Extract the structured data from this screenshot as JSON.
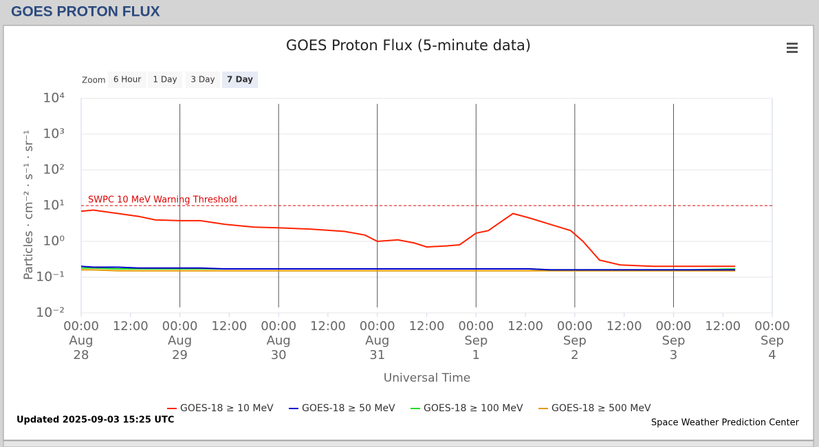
{
  "header": "GOES PROTON FLUX",
  "chart_data": {
    "type": "line",
    "title": "GOES Proton Flux (5-minute data)",
    "zoom": {
      "label": "Zoom",
      "options": [
        "6 Hour",
        "1 Day",
        "3 Day",
        "7 Day"
      ],
      "selected": 3
    },
    "x_label": "Universal Time",
    "y_label": "Particles · cm⁻² · s⁻¹ · sr⁻¹",
    "log_y": true,
    "grid": true,
    "xlim": [
      0,
      168
    ],
    "xticks": [
      {
        "value": 0,
        "label": "00:00"
      },
      {
        "value": 12,
        "label": "12:00"
      },
      {
        "value": 24,
        "label": "00:00"
      },
      {
        "value": 36,
        "label": "12:00"
      },
      {
        "value": 48,
        "label": "00:00"
      },
      {
        "value": 60,
        "label": "12:00"
      },
      {
        "value": 72,
        "label": "00:00"
      },
      {
        "value": 84,
        "label": "12:00"
      },
      {
        "value": 96,
        "label": "00:00"
      },
      {
        "value": 108,
        "label": "12:00"
      },
      {
        "value": 120,
        "label": "00:00"
      },
      {
        "value": 132,
        "label": "12:00"
      },
      {
        "value": 144,
        "label": "00:00"
      },
      {
        "value": 156,
        "label": "12:00"
      },
      {
        "value": 168,
        "label": "00:00"
      }
    ],
    "date_ticks": [
      {
        "value": 0,
        "label": "Aug 28"
      },
      {
        "value": 24,
        "label": "Aug 29"
      },
      {
        "value": 48,
        "label": "Aug 30"
      },
      {
        "value": 72,
        "label": "Aug 31"
      },
      {
        "value": 96,
        "label": "Sep 1"
      },
      {
        "value": 120,
        "label": "Sep 2"
      },
      {
        "value": 144,
        "label": "Sep 3"
      },
      {
        "value": 168,
        "label": "Sep 4"
      }
    ],
    "ylim": [
      0.01,
      10000
    ],
    "yticks": [
      {
        "value": 0.01,
        "label": "10⁻²"
      },
      {
        "value": 0.1,
        "label": "10⁻¹"
      },
      {
        "value": 1,
        "label": "10⁰"
      },
      {
        "value": 10,
        "label": "10¹"
      },
      {
        "value": 100,
        "label": "10²"
      },
      {
        "value": 1000,
        "label": "10³"
      },
      {
        "value": 10000,
        "label": "10⁴"
      }
    ],
    "threshold": {
      "value": 10,
      "label": "SWPC 10 MeV Warning Threshold",
      "color": "#dd0000"
    },
    "x": [
      0,
      3,
      9,
      14,
      18,
      24,
      29,
      35,
      42,
      48,
      56,
      64,
      69,
      72,
      77,
      81,
      84,
      89,
      92,
      96,
      99,
      102,
      105,
      109,
      114,
      119,
      122,
      126,
      131,
      139,
      148,
      159
    ],
    "series": [
      {
        "name": "GOES-18 ≥ 10 MeV",
        "color": "#ff2200",
        "values": [
          7,
          7.5,
          6,
          5,
          4,
          3.8,
          3.8,
          3,
          2.5,
          2.4,
          2.2,
          1.9,
          1.5,
          1.0,
          1.1,
          0.9,
          0.7,
          0.75,
          0.8,
          1.7,
          2,
          3.5,
          6,
          4.5,
          3,
          2,
          1,
          0.3,
          0.22,
          0.2,
          0.2,
          0.2
        ]
      },
      {
        "name": "GOES-18 ≥ 50 MeV",
        "color": "#0000cc",
        "values": [
          0.2,
          0.19,
          0.19,
          0.18,
          0.18,
          0.18,
          0.18,
          0.17,
          0.17,
          0.17,
          0.17,
          0.17,
          0.17,
          0.17,
          0.17,
          0.17,
          0.17,
          0.17,
          0.17,
          0.17,
          0.17,
          0.17,
          0.17,
          0.17,
          0.16,
          0.16,
          0.16,
          0.16,
          0.16,
          0.16,
          0.16,
          0.16
        ]
      },
      {
        "name": "GOES-18 ≥ 100 MeV",
        "color": "#22dd22",
        "values": [
          0.18,
          0.18,
          0.17,
          0.17,
          0.17,
          0.17,
          0.17,
          0.17,
          0.17,
          0.17,
          0.17,
          0.17,
          0.17,
          0.17,
          0.17,
          0.17,
          0.17,
          0.17,
          0.17,
          0.17,
          0.17,
          0.17,
          0.17,
          0.17,
          0.16,
          0.16,
          0.16,
          0.16,
          0.16,
          0.16,
          0.16,
          0.17
        ]
      },
      {
        "name": "GOES-18 ≥ 500 MeV",
        "color": "#e69a00",
        "values": [
          0.16,
          0.16,
          0.15,
          0.15,
          0.15,
          0.15,
          0.15,
          0.15,
          0.15,
          0.15,
          0.15,
          0.15,
          0.15,
          0.15,
          0.15,
          0.15,
          0.15,
          0.15,
          0.15,
          0.15,
          0.15,
          0.15,
          0.15,
          0.15,
          0.15,
          0.15,
          0.15,
          0.15,
          0.15,
          0.15,
          0.15,
          0.15
        ]
      }
    ]
  },
  "updated": "Updated 2025-09-03 15:25 UTC",
  "credit": "Space Weather Prediction Center"
}
